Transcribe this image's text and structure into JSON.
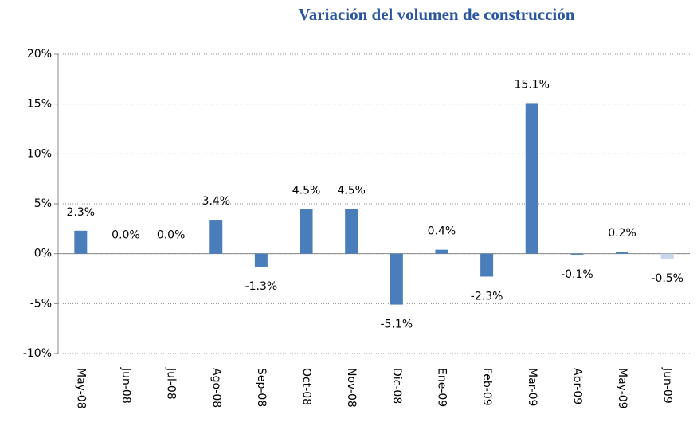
{
  "chart_data": {
    "type": "bar",
    "title": "Variación del volumen de construcción",
    "categories": [
      "May-08",
      "Jun-08",
      "Jul-08",
      "Ago-08",
      "Sep-08",
      "Oct-08",
      "Nov-08",
      "Dic-08",
      "Ene-09",
      "Feb-09",
      "Mar-09",
      "Abr-09",
      "May-09",
      "Jun-09"
    ],
    "values": [
      2.3,
      0.0,
      0.0,
      3.4,
      -1.3,
      4.5,
      4.5,
      -5.1,
      0.4,
      -2.3,
      15.1,
      -0.1,
      0.2,
      -0.5
    ],
    "value_labels": [
      "2.3%",
      "0.0%",
      "0.0%",
      "3.4%",
      "-1.3%",
      "4.5%",
      "4.5%",
      "-5.1%",
      "0.4%",
      "-2.3%",
      "15.1%",
      "-0.1%",
      "0.2%",
      "-0.5%"
    ],
    "colors": [
      "#4a7ebb",
      "#4a7ebb",
      "#4a7ebb",
      "#4a7ebb",
      "#4a7ebb",
      "#4a7ebb",
      "#4a7ebb",
      "#4a7ebb",
      "#4a7ebb",
      "#4a7ebb",
      "#4a7ebb",
      "#4a7ebb",
      "#4a7ebb",
      "#c6d5ea"
    ],
    "ylim": [
      -10,
      20
    ],
    "yticks": [
      {
        "value": -10,
        "label": "-10%"
      },
      {
        "value": -5,
        "label": "-5%"
      },
      {
        "value": 0,
        "label": "0%"
      },
      {
        "value": 5,
        "label": "5%"
      },
      {
        "value": 10,
        "label": "10%"
      },
      {
        "value": 15,
        "label": "15%"
      },
      {
        "value": 20,
        "label": "20%"
      }
    ],
    "grid": true
  }
}
